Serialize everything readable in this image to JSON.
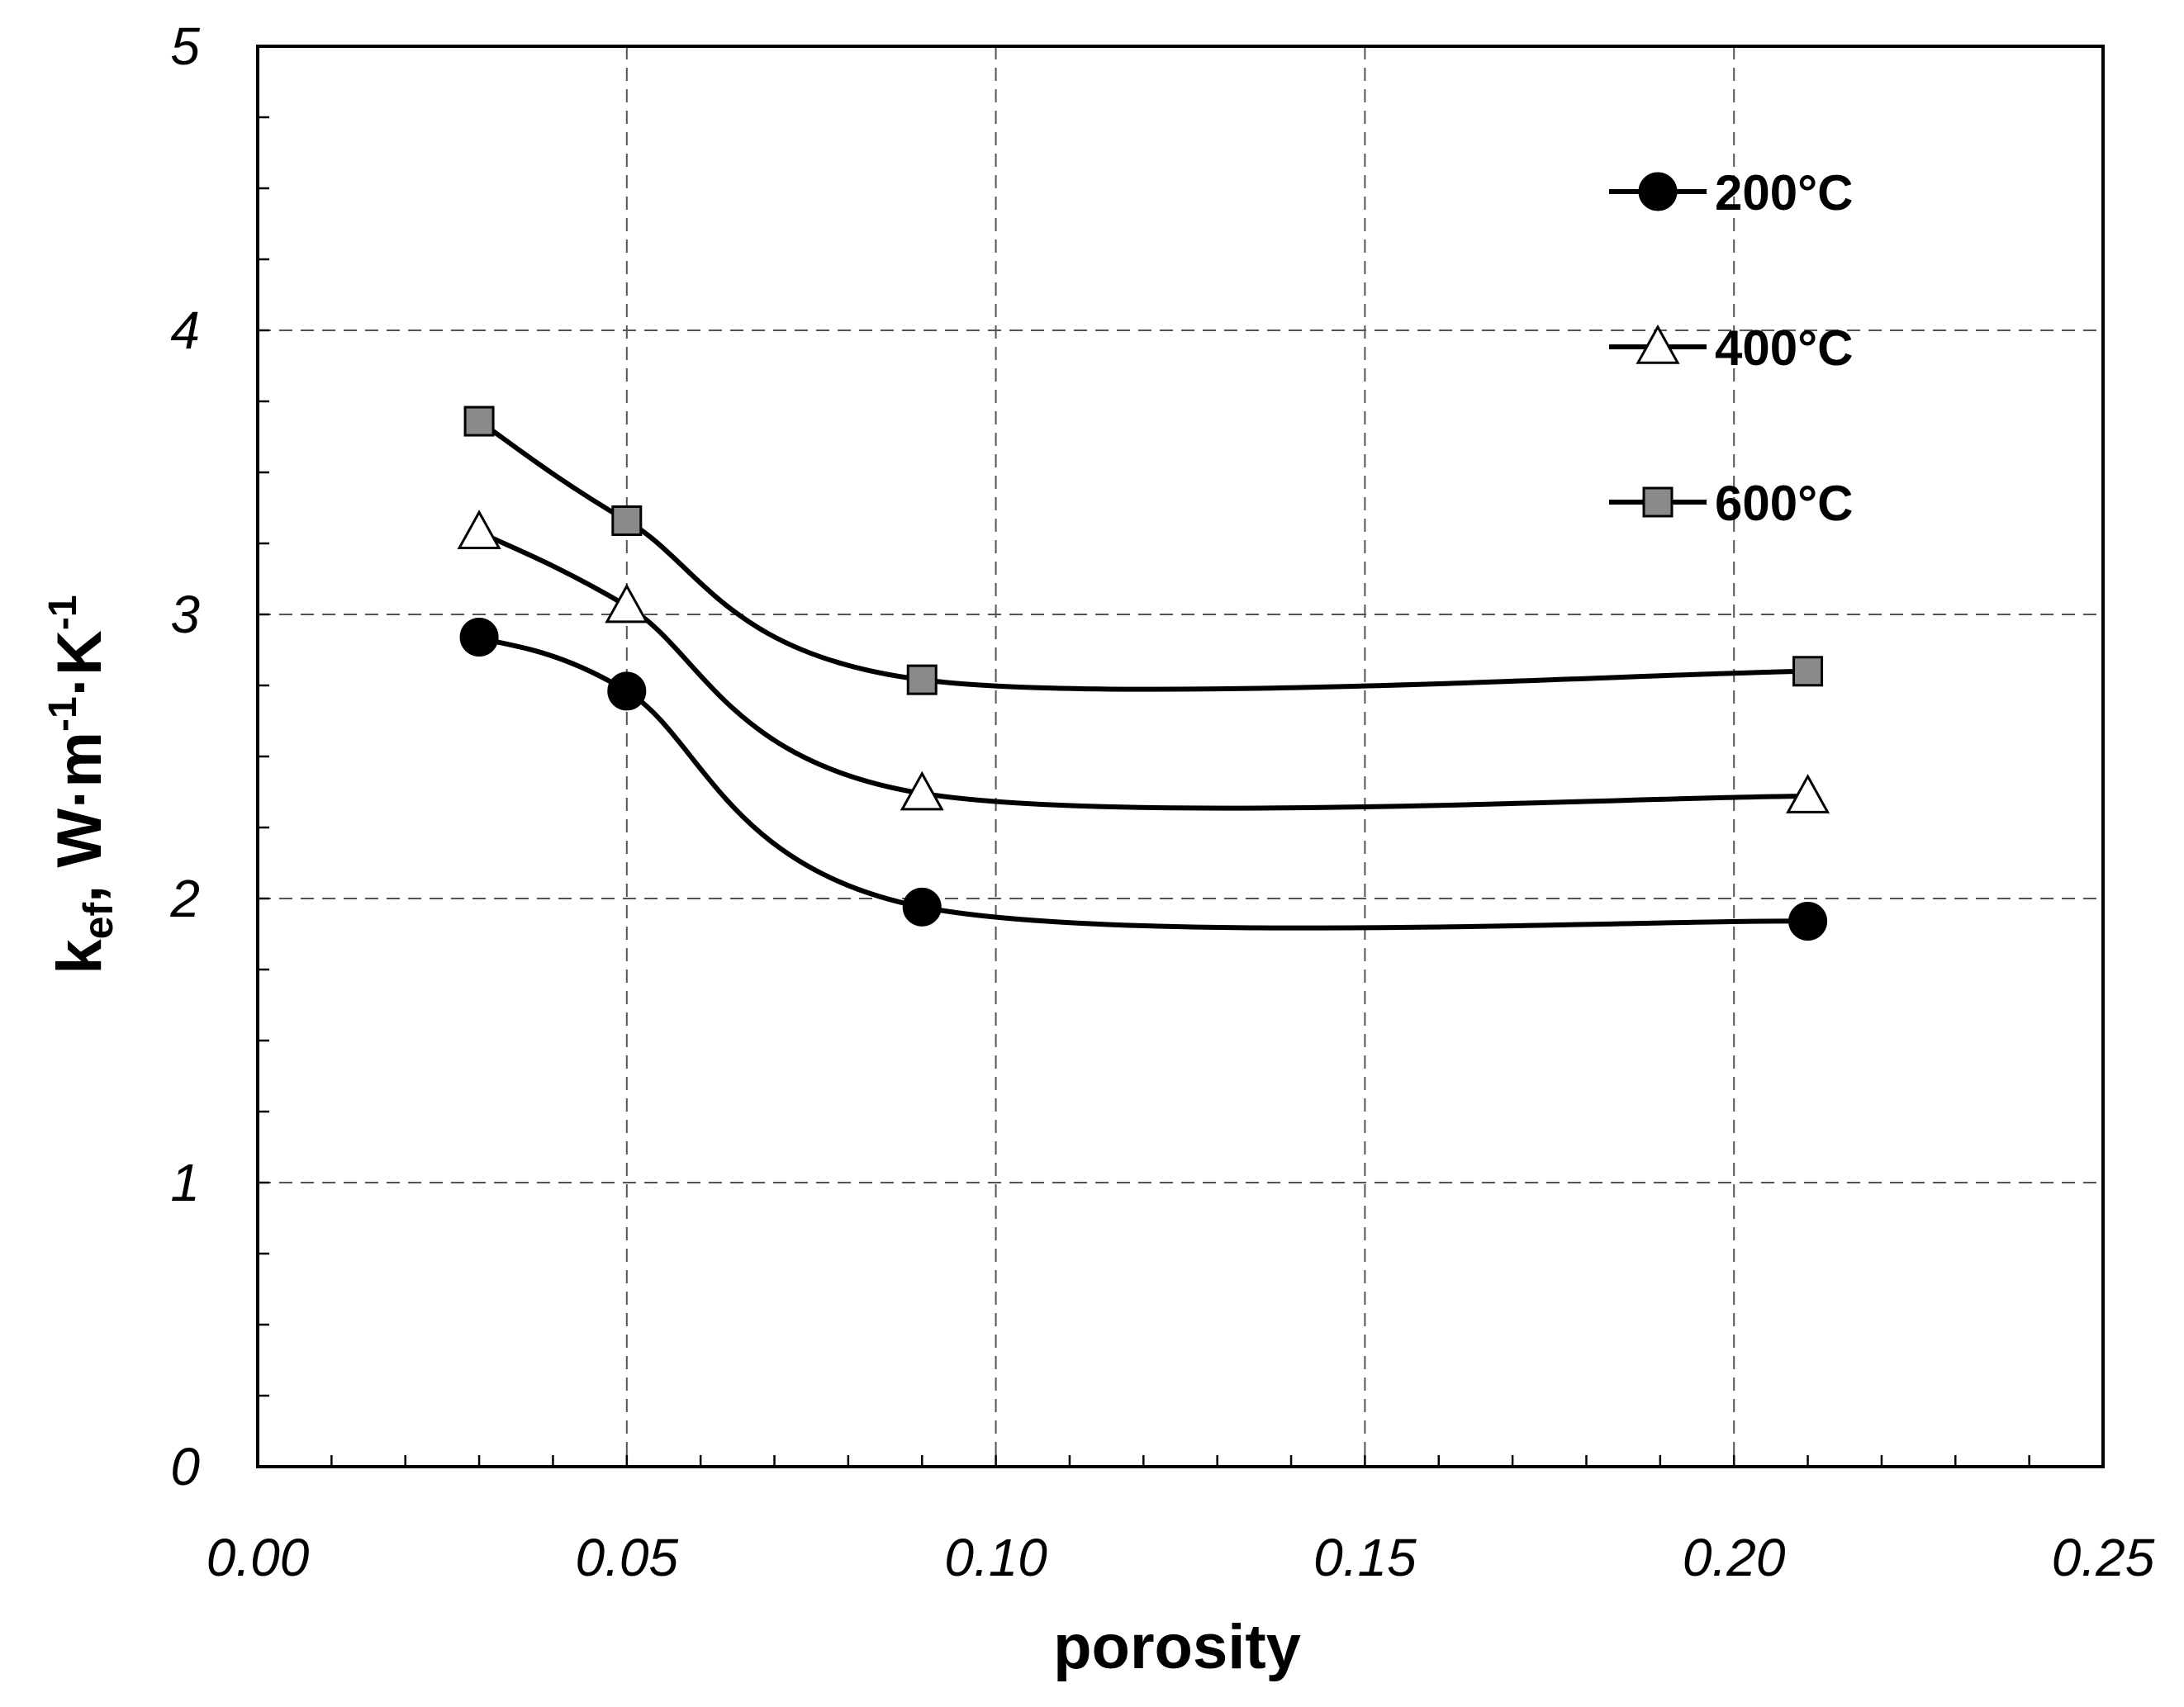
{
  "chart_data": {
    "type": "line",
    "title": "",
    "xlabel": "porosity",
    "ylabel": {
      "main": "k",
      "sub": "ef",
      "rest": ", W·m",
      "sup1": "-1",
      "mid": "·K",
      "sup2": "-1"
    },
    "xlim": [
      0.0,
      0.25
    ],
    "ylim": [
      0,
      5
    ],
    "x_ticks": [
      0.0,
      0.05,
      0.1,
      0.15,
      0.2,
      0.25
    ],
    "x_tick_labels": [
      "0.00",
      "0.05",
      "0.10",
      "0.15",
      "0.20",
      "0.25"
    ],
    "x_minor_step": 0.01,
    "y_ticks": [
      0,
      1,
      2,
      3,
      4,
      5
    ],
    "y_tick_labels": [
      "0",
      "1",
      "2",
      "3",
      "4",
      "5"
    ],
    "y_minor_step": 0.25,
    "grid": true,
    "legend_position": "top-right",
    "series": [
      {
        "name": "200°C",
        "marker": "circle",
        "marker_fill": "#000000",
        "x": [
          0.03,
          0.05,
          0.09,
          0.21
        ],
        "values": [
          2.92,
          2.73,
          1.97,
          1.92
        ]
      },
      {
        "name": "400°C",
        "marker": "triangle",
        "marker_fill": "#ffffff",
        "x": [
          0.03,
          0.05,
          0.09,
          0.21
        ],
        "values": [
          3.29,
          3.03,
          2.37,
          2.36
        ]
      },
      {
        "name": "600°C",
        "marker": "square",
        "marker_fill": "#8a8a8a",
        "x": [
          0.03,
          0.05,
          0.09,
          0.21
        ],
        "values": [
          3.68,
          3.33,
          2.77,
          2.8
        ]
      }
    ]
  },
  "colors": {
    "line": "#000000",
    "grid": "#555555",
    "background": "#ffffff"
  }
}
